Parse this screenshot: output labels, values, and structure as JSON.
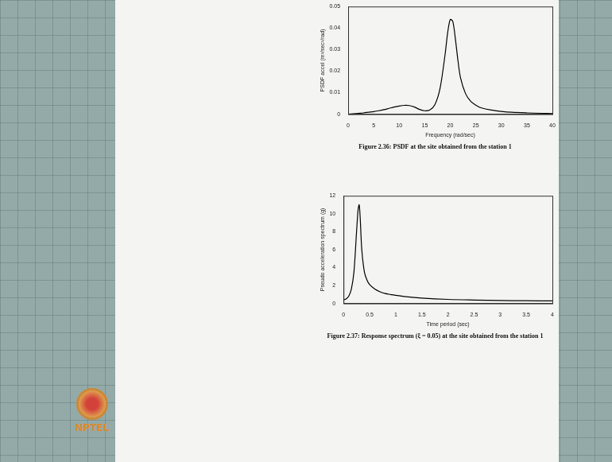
{
  "chart_data": [
    {
      "type": "line",
      "title": "Figure 2.36: PSDF at the site obtained from the station 1",
      "x_label": "Frequency (rad/sec)",
      "y_label": "PSDF accel (m²/sec³/rad)",
      "x": [
        0,
        1,
        2,
        3,
        4,
        5,
        6,
        7,
        8,
        9,
        10,
        11,
        12,
        13,
        14,
        15,
        16,
        17,
        18,
        19,
        19.5,
        20,
        20.5,
        21,
        21.5,
        22,
        23,
        24,
        25,
        26,
        28,
        30,
        32,
        35,
        38,
        40
      ],
      "values": [
        0,
        0.0002,
        0.0004,
        0.0006,
        0.0009,
        0.0012,
        0.0016,
        0.0021,
        0.0027,
        0.0033,
        0.0038,
        0.0041,
        0.004,
        0.0033,
        0.0022,
        0.0016,
        0.002,
        0.0045,
        0.012,
        0.028,
        0.038,
        0.044,
        0.043,
        0.035,
        0.025,
        0.017,
        0.0095,
        0.006,
        0.0042,
        0.003,
        0.0019,
        0.0013,
        0.0009,
        0.0006,
        0.0004,
        0.0003
      ],
      "color": "#000000",
      "xlim": [
        0,
        40
      ],
      "xticks": [
        0,
        5,
        10,
        15,
        20,
        25,
        30,
        35,
        40
      ],
      "ylim": [
        0,
        0.05
      ],
      "yticks": [
        0,
        0.01,
        0.02,
        0.03,
        0.04,
        0.05
      ],
      "grid": false
    },
    {
      "type": "line",
      "title": "Figure 2.37: Response spectrum (ξ = 0.05) at the site obtained from the station 1",
      "x_label": "Time period (sec)",
      "y_label": "Pseudo acceleration spectrum (g)",
      "x": [
        0,
        0.05,
        0.1,
        0.15,
        0.2,
        0.25,
        0.28,
        0.3,
        0.32,
        0.35,
        0.4,
        0.45,
        0.5,
        0.6,
        0.7,
        0.8,
        0.9,
        1.0,
        1.2,
        1.5,
        2,
        2.5,
        3,
        3.5,
        4
      ],
      "values": [
        0.4,
        0.5,
        0.8,
        1.6,
        3.5,
        8,
        10.5,
        11,
        9.5,
        6,
        3.5,
        2.6,
        2.1,
        1.6,
        1.3,
        1.1,
        1.0,
        0.9,
        0.75,
        0.6,
        0.45,
        0.38,
        0.33,
        0.3,
        0.28
      ],
      "color": "#000000",
      "xlim": [
        0,
        4
      ],
      "xticks": [
        0,
        0.5,
        1,
        1.5,
        2,
        2.5,
        3,
        3.5,
        4
      ],
      "ylim": [
        0,
        12
      ],
      "yticks": [
        0,
        2,
        4,
        6,
        8,
        10,
        12
      ],
      "grid": false
    }
  ],
  "logo": "NPTEL"
}
